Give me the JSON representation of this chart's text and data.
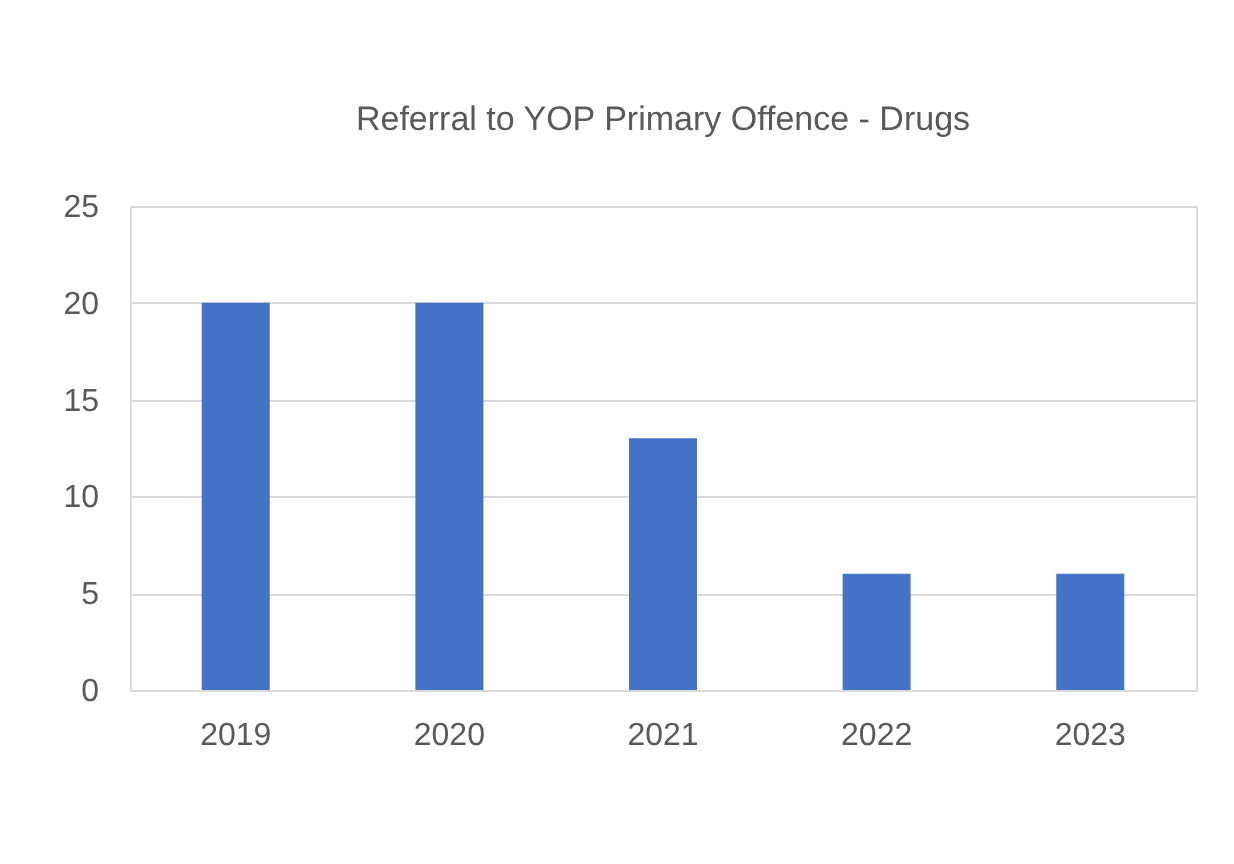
{
  "chart_data": {
    "type": "bar",
    "title": "Referral to YOP Primary  Offence - Drugs",
    "categories": [
      "2019",
      "2020",
      "2021",
      "2022",
      "2023"
    ],
    "values": [
      20,
      20,
      13,
      6,
      6
    ],
    "color": "#4472c4",
    "ylim": [
      0,
      25
    ],
    "yticks": [
      0,
      5,
      10,
      15,
      20,
      25
    ],
    "grid": "y"
  }
}
